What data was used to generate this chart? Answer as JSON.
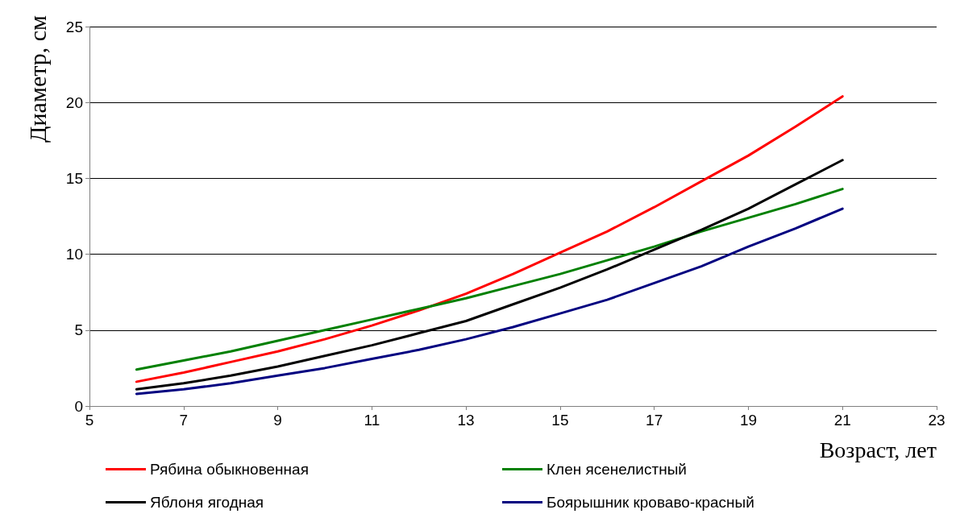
{
  "chart_data": {
    "type": "line",
    "xlabel": "Возраст, лет",
    "ylabel": "Диаметр, см",
    "x": [
      6,
      7,
      8,
      9,
      10,
      11,
      12,
      13,
      14,
      15,
      16,
      17,
      18,
      19,
      20,
      21
    ],
    "series": [
      {
        "name": "Рябина обыкновенная",
        "color": "#ff0000",
        "values": [
          1.6,
          2.2,
          2.9,
          3.6,
          4.4,
          5.3,
          6.3,
          7.4,
          8.7,
          10.1,
          11.5,
          13.1,
          14.8,
          16.5,
          18.4,
          20.4
        ]
      },
      {
        "name": "Клен ясенелистный",
        "color": "#008000",
        "values": [
          2.4,
          3.0,
          3.6,
          4.3,
          5.0,
          5.7,
          6.4,
          7.1,
          7.9,
          8.7,
          9.6,
          10.5,
          11.5,
          12.4,
          13.3,
          14.3
        ]
      },
      {
        "name": "Яблоня ягодная",
        "color": "#000000",
        "values": [
          1.1,
          1.5,
          2.0,
          2.6,
          3.3,
          4.0,
          4.8,
          5.6,
          6.7,
          7.8,
          9.0,
          10.3,
          11.6,
          13.0,
          14.6,
          16.2
        ]
      },
      {
        "name": "Боярышник кроваво-красный",
        "color": "#000080",
        "values": [
          0.8,
          1.1,
          1.5,
          2.0,
          2.5,
          3.1,
          3.7,
          4.4,
          5.2,
          6.1,
          7.0,
          8.1,
          9.2,
          10.5,
          11.7,
          13.0
        ]
      }
    ],
    "xlim": [
      5,
      23
    ],
    "xticks": [
      5,
      7,
      9,
      11,
      13,
      15,
      17,
      19,
      21,
      23
    ],
    "ylim": [
      0,
      25
    ],
    "yticks": [
      0,
      5,
      10,
      15,
      20,
      25
    ],
    "grid": "y",
    "legend": "bottom",
    "marker": "none",
    "line_style": "solid"
  }
}
